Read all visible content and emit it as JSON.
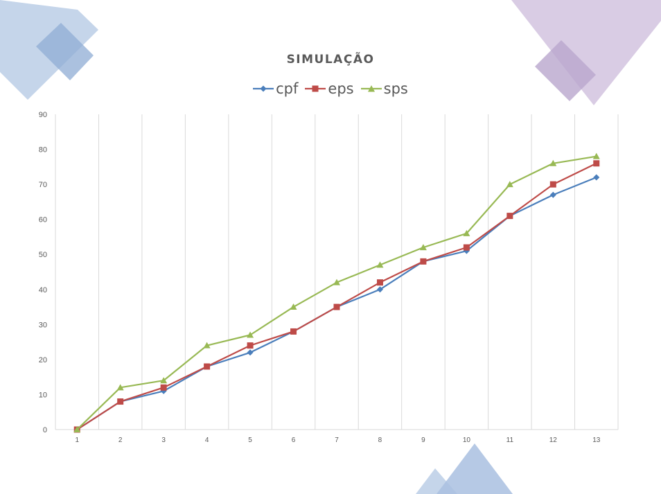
{
  "chart_data": {
    "type": "line",
    "title": "SIMULAÇÃO",
    "xlabel": "",
    "ylabel": "",
    "categories": [
      "1",
      "2",
      "3",
      "4",
      "5",
      "6",
      "7",
      "8",
      "9",
      "10",
      "11",
      "12",
      "13"
    ],
    "ylim": [
      0,
      90
    ],
    "yticks": [
      0,
      10,
      20,
      30,
      40,
      50,
      60,
      70,
      80,
      90
    ],
    "grid": "vertical",
    "legend": "top",
    "series": [
      {
        "name": "cpf",
        "marker": "diamond",
        "color": "#4A7EBB",
        "values": [
          0,
          8,
          11,
          18,
          22,
          28,
          35,
          40,
          48,
          51,
          61,
          67,
          72
        ]
      },
      {
        "name": "eps",
        "marker": "square",
        "color": "#BE4B48",
        "values": [
          0,
          8,
          12,
          18,
          24,
          28,
          35,
          42,
          48,
          52,
          61,
          70,
          76
        ]
      },
      {
        "name": "sps",
        "marker": "triangle",
        "color": "#98B954",
        "values": [
          0,
          12,
          14,
          24,
          27,
          35,
          42,
          47,
          52,
          56,
          70,
          76,
          78
        ]
      }
    ]
  }
}
